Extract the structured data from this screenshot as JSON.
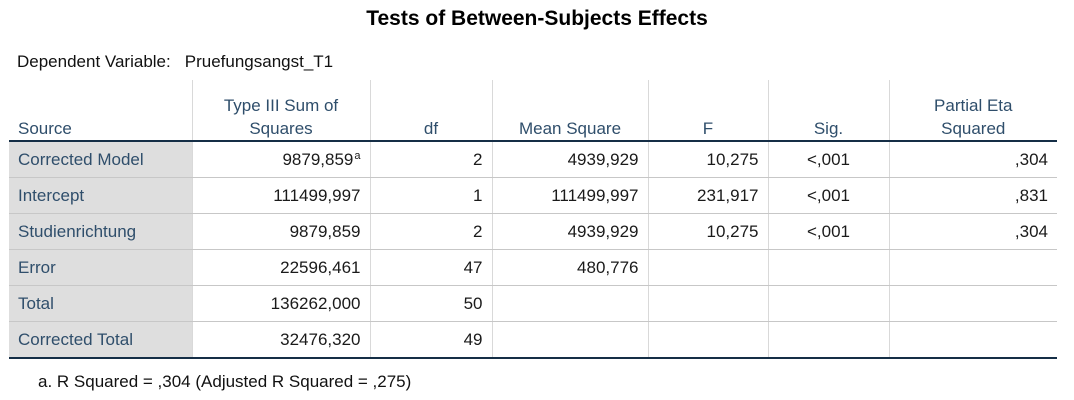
{
  "title": "Tests of Between-Subjects Effects",
  "dependent_variable": {
    "label": "Dependent Variable:",
    "value": "Pruefungsangst_T1"
  },
  "table": {
    "headers": {
      "source": "Source",
      "ss_line1": "Type III Sum of",
      "ss_line2": "Squares",
      "df": "df",
      "mean_square": "Mean Square",
      "f": "F",
      "sig": "Sig.",
      "eta_line1": "Partial Eta",
      "eta_line2": "Squared"
    },
    "rows": [
      {
        "source": "Corrected Model",
        "ss": "9879,859",
        "ss_note": "a",
        "df": "2",
        "ms": "4939,929",
        "f": "10,275",
        "sig": "<,001",
        "eta": ",304"
      },
      {
        "source": "Intercept",
        "ss": "111499,997",
        "df": "1",
        "ms": "111499,997",
        "f": "231,917",
        "sig": "<,001",
        "eta": ",831"
      },
      {
        "source": "Studienrichtung",
        "ss": "9879,859",
        "df": "2",
        "ms": "4939,929",
        "f": "10,275",
        "sig": "<,001",
        "eta": ",304"
      },
      {
        "source": "Error",
        "ss": "22596,461",
        "df": "47",
        "ms": "480,776",
        "f": "",
        "sig": "",
        "eta": ""
      },
      {
        "source": "Total",
        "ss": "136262,000",
        "df": "50",
        "ms": "",
        "f": "",
        "sig": "",
        "eta": ""
      },
      {
        "source": "Corrected Total",
        "ss": "32476,320",
        "df": "49",
        "ms": "",
        "f": "",
        "sig": "",
        "eta": ""
      }
    ]
  },
  "footnote": "a. R Squared = ,304 (Adjusted R Squared = ,275)"
}
